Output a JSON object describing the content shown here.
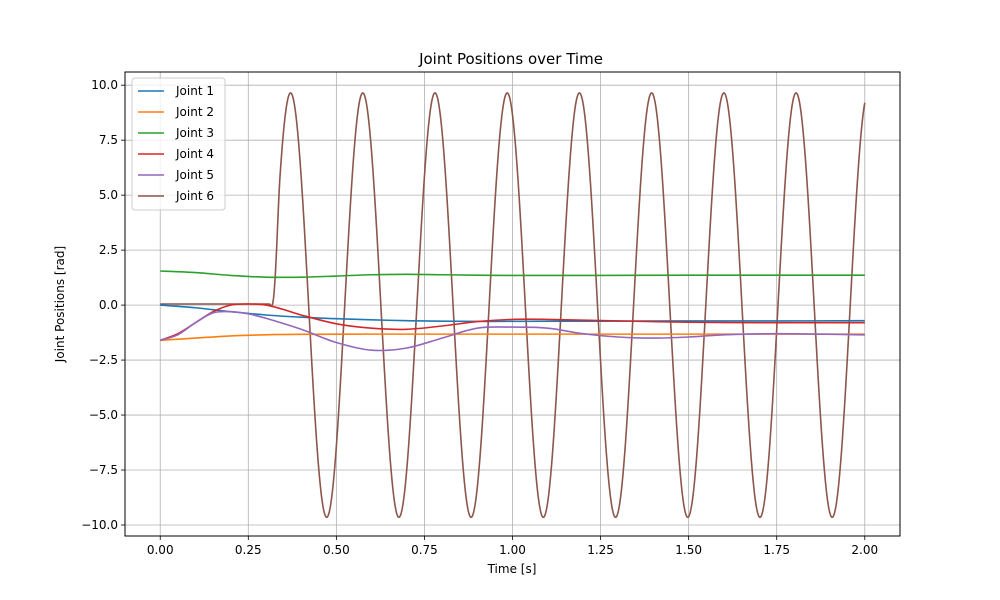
{
  "chart_data": {
    "type": "line",
    "title": "Joint Positions over Time",
    "xlabel": "Time [s]",
    "ylabel": "Joint Positions [rad]",
    "xlim": [
      -0.1,
      2.1
    ],
    "ylim": [
      -10.5,
      10.6
    ],
    "xticks": [
      0.0,
      0.25,
      0.5,
      0.75,
      1.0,
      1.25,
      1.5,
      1.75,
      2.0
    ],
    "xtick_labels": [
      "0.00",
      "0.25",
      "0.50",
      "0.75",
      "1.00",
      "1.25",
      "1.50",
      "1.75",
      "2.00"
    ],
    "yticks": [
      -10.0,
      -7.5,
      -5.0,
      -2.5,
      0.0,
      2.5,
      5.0,
      7.5,
      10.0
    ],
    "ytick_labels": [
      "−10.0",
      "−7.5",
      "−5.0",
      "−2.5",
      "0.0",
      "2.5",
      "5.0",
      "7.5",
      "10.0"
    ],
    "grid": true,
    "legend_position": "top-left",
    "series": [
      {
        "name": "Joint 1",
        "color": "#1f77b4",
        "x": [
          0.0,
          0.1,
          0.2,
          0.3,
          0.4,
          0.5,
          0.6,
          0.7,
          0.8,
          0.9,
          1.0,
          1.25,
          1.5,
          1.75,
          2.0
        ],
        "y": [
          0.0,
          -0.12,
          -0.3,
          -0.45,
          -0.55,
          -0.62,
          -0.67,
          -0.71,
          -0.73,
          -0.74,
          -0.74,
          -0.73,
          -0.72,
          -0.72,
          -0.71
        ]
      },
      {
        "name": "Joint 2",
        "color": "#ff7f0e",
        "x": [
          0.0,
          0.1,
          0.2,
          0.3,
          0.4,
          0.6,
          0.8,
          1.0,
          1.25,
          1.5,
          1.75,
          2.0
        ],
        "y": [
          -1.6,
          -1.5,
          -1.4,
          -1.35,
          -1.33,
          -1.32,
          -1.32,
          -1.32,
          -1.32,
          -1.32,
          -1.32,
          -1.32
        ]
      },
      {
        "name": "Joint 3",
        "color": "#2ca02c",
        "x": [
          0.0,
          0.1,
          0.2,
          0.3,
          0.4,
          0.5,
          0.6,
          0.7,
          0.8,
          0.9,
          1.0,
          1.25,
          1.5,
          1.75,
          2.0
        ],
        "y": [
          1.55,
          1.48,
          1.35,
          1.27,
          1.27,
          1.32,
          1.38,
          1.4,
          1.38,
          1.36,
          1.35,
          1.35,
          1.36,
          1.36,
          1.36
        ]
      },
      {
        "name": "Joint 4",
        "color": "#d62728",
        "x": [
          0.0,
          0.05,
          0.1,
          0.15,
          0.2,
          0.25,
          0.3,
          0.35,
          0.4,
          0.5,
          0.6,
          0.7,
          0.8,
          0.9,
          1.0,
          1.1,
          1.25,
          1.5,
          1.75,
          2.0
        ],
        "y": [
          -1.6,
          -1.3,
          -0.8,
          -0.3,
          0.0,
          0.05,
          0.0,
          -0.2,
          -0.45,
          -0.85,
          -1.05,
          -1.1,
          -0.95,
          -0.75,
          -0.65,
          -0.65,
          -0.7,
          -0.78,
          -0.8,
          -0.8
        ]
      },
      {
        "name": "Joint 5",
        "color": "#9467bd",
        "x": [
          0.0,
          0.05,
          0.1,
          0.15,
          0.2,
          0.25,
          0.3,
          0.4,
          0.5,
          0.6,
          0.7,
          0.8,
          0.9,
          1.0,
          1.1,
          1.2,
          1.3,
          1.4,
          1.5,
          1.6,
          1.75,
          2.0
        ],
        "y": [
          -1.6,
          -1.35,
          -0.8,
          -0.35,
          -0.3,
          -0.4,
          -0.6,
          -1.1,
          -1.7,
          -2.05,
          -1.95,
          -1.5,
          -1.05,
          -1.0,
          -1.05,
          -1.3,
          -1.45,
          -1.5,
          -1.45,
          -1.35,
          -1.3,
          -1.35
        ]
      },
      {
        "name": "Joint 6",
        "color": "#8c564b",
        "type": "oscillation",
        "x_range": [
          0.0,
          2.0
        ],
        "flat_until": 0.31,
        "flat_level": 0.05,
        "amplitude": 9.65,
        "period": 0.205,
        "first_peak": 0.37,
        "values_note_peaks": [
          0.37,
          0.575,
          0.78,
          0.985,
          1.19,
          1.395,
          1.6,
          1.805,
          2.0
        ],
        "values_note_troughs": [
          0.47,
          0.675,
          0.88,
          1.085,
          1.29,
          1.495,
          1.7,
          1.905
        ]
      }
    ]
  }
}
